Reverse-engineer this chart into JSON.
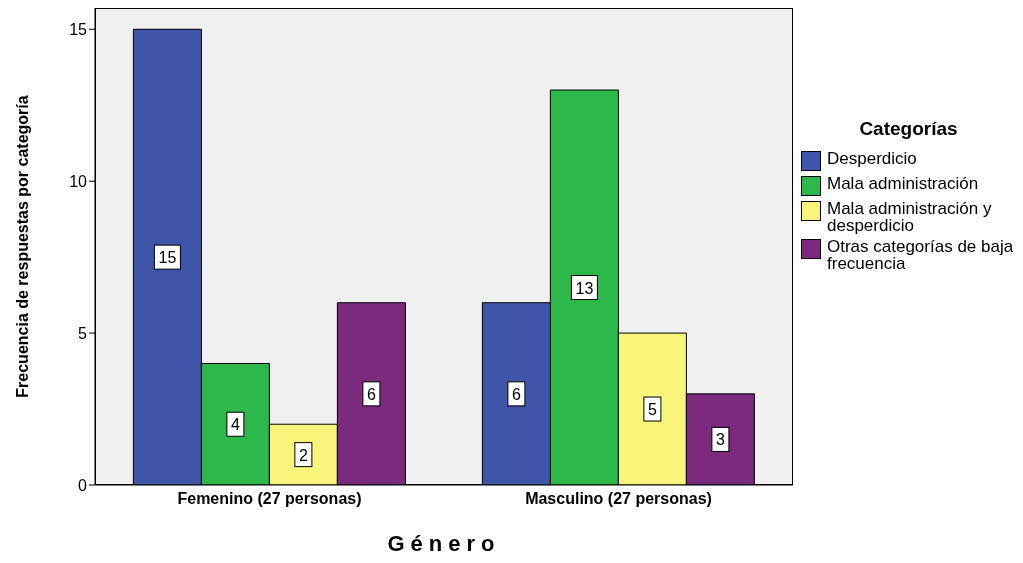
{
  "chart_data": {
    "type": "bar",
    "xlabel": "Género",
    "ylabel": "Frecuencia de respuestas por categoría",
    "legend_title": "Categorías",
    "categories": [
      "Femenino (27 personas)",
      "Masculino (27 personas)"
    ],
    "series": [
      {
        "name": "Desperdicio",
        "color": "#3f56a8",
        "values": [
          15,
          6
        ]
      },
      {
        "name": "Mala administración",
        "color": "#2db84a",
        "values": [
          4,
          13
        ]
      },
      {
        "name": "Mala administración y desperdicio",
        "color": "#f8f57a",
        "values": [
          2,
          5
        ]
      },
      {
        "name": "Otras categorías de baja frecuencia",
        "color": "#7b2a7e",
        "values": [
          6,
          3
        ]
      }
    ],
    "ylim": [
      0,
      15.7
    ],
    "yticks": [
      0,
      5,
      10,
      15
    ],
    "grid": false,
    "legend": "right",
    "data_labels": true
  }
}
